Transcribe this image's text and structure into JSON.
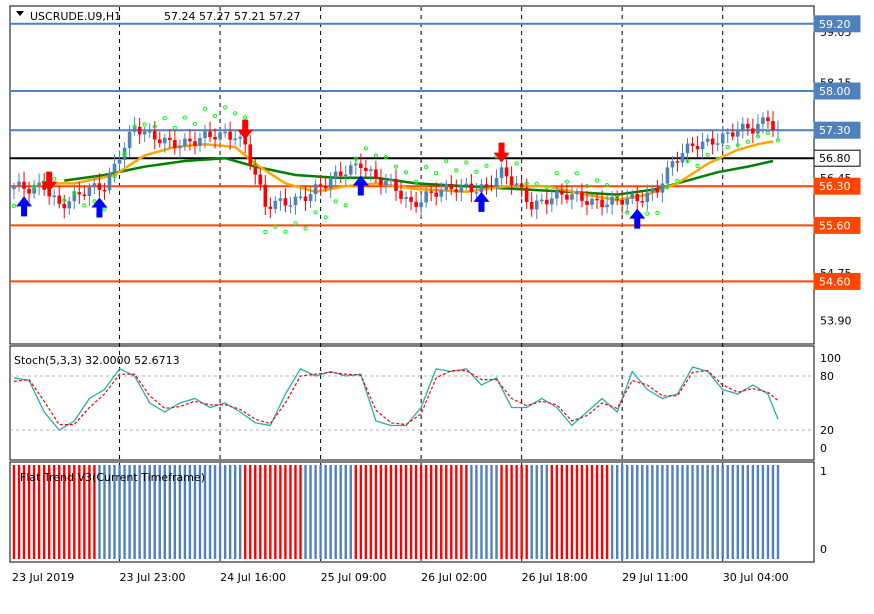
{
  "header": {
    "symbol": "USCRUDE.U9,H1",
    "ohlc": "57.24 57.27 57.21 57.27"
  },
  "colors": {
    "bull": "#4f81bd",
    "bear": "#ff0000",
    "resistance": "#4f81bd",
    "support": "#ff4500",
    "pivot": "#000000",
    "ma_fast": "#ffa500",
    "ma_slow": "#008000",
    "sar": "#00ff00",
    "stoch_main": "#20b2aa",
    "stoch_signal": "#ff0000",
    "arrow": "#0000ff"
  },
  "chart_data": [
    {
      "type": "candlestick",
      "panel": "price",
      "ylim": [
        53.5,
        59.5
      ],
      "price_axis_ticks": [
        "59.05",
        "58.15",
        "57.30",
        "56.45",
        "55.60",
        "54.75",
        "53.90"
      ],
      "tick_values": [
        59.05,
        58.15,
        57.3,
        56.45,
        55.6,
        54.75,
        53.9
      ],
      "levels": [
        {
          "label": "59.20",
          "value": 59.2,
          "kind": "resistance"
        },
        {
          "label": "58.00",
          "value": 58.0,
          "kind": "resistance"
        },
        {
          "label": "57.30",
          "value": 57.3,
          "kind": "resistance"
        },
        {
          "label": "56.80",
          "value": 56.8,
          "kind": "pivot"
        },
        {
          "label": "56.30",
          "value": 56.3,
          "kind": "support"
        },
        {
          "label": "55.60",
          "value": 55.6,
          "kind": "support"
        },
        {
          "label": "54.60",
          "value": 54.6,
          "kind": "support"
        }
      ],
      "close_path": [
        [
          0,
          56.3
        ],
        [
          3,
          56.2
        ],
        [
          6,
          56.3
        ],
        [
          9,
          56.0
        ],
        [
          12,
          56.1
        ],
        [
          15,
          56.2
        ],
        [
          18,
          56.3
        ],
        [
          21,
          56.9
        ],
        [
          24,
          57.35
        ],
        [
          27,
          57.15
        ],
        [
          31,
          57.1
        ],
        [
          36,
          57.1
        ],
        [
          41,
          57.2
        ],
        [
          44,
          57.25
        ],
        [
          46,
          57.05
        ],
        [
          48,
          56.5
        ],
        [
          50,
          55.9
        ],
        [
          53,
          56.0
        ],
        [
          58,
          56.15
        ],
        [
          62,
          56.3
        ],
        [
          66,
          56.6
        ],
        [
          69,
          56.75
        ],
        [
          72,
          56.4
        ],
        [
          75,
          56.3
        ],
        [
          79,
          56.0
        ],
        [
          82,
          56.15
        ],
        [
          86,
          56.2
        ],
        [
          90,
          56.3
        ],
        [
          94,
          56.3
        ],
        [
          97,
          56.5
        ],
        [
          100,
          56.3
        ],
        [
          103,
          56.0
        ],
        [
          107,
          56.1
        ],
        [
          112,
          56.1
        ],
        [
          116,
          56.05
        ],
        [
          120,
          56.0
        ],
        [
          124,
          56.05
        ],
        [
          128,
          56.3
        ],
        [
          131,
          56.7
        ],
        [
          135,
          57.0
        ],
        [
          139,
          57.15
        ],
        [
          143,
          57.25
        ],
        [
          147,
          57.3
        ],
        [
          150,
          57.55
        ],
        [
          152,
          57.3
        ]
      ],
      "ma_fast": [
        [
          6,
          56.35
        ],
        [
          12,
          56.35
        ],
        [
          20,
          56.5
        ],
        [
          26,
          56.85
        ],
        [
          32,
          57.0
        ],
        [
          38,
          57.05
        ],
        [
          44,
          57.0
        ],
        [
          48,
          56.7
        ],
        [
          54,
          56.35
        ],
        [
          60,
          56.2
        ],
        [
          66,
          56.3
        ],
        [
          72,
          56.35
        ],
        [
          80,
          56.25
        ],
        [
          90,
          56.2
        ],
        [
          98,
          56.3
        ],
        [
          106,
          56.3
        ],
        [
          114,
          56.15
        ],
        [
          120,
          56.05
        ],
        [
          126,
          56.15
        ],
        [
          132,
          56.35
        ],
        [
          138,
          56.7
        ],
        [
          144,
          56.95
        ],
        [
          148,
          57.05
        ],
        [
          151,
          57.1
        ]
      ],
      "ma_slow": [
        [
          10,
          56.4
        ],
        [
          18,
          56.5
        ],
        [
          26,
          56.65
        ],
        [
          34,
          56.75
        ],
        [
          42,
          56.8
        ],
        [
          48,
          56.65
        ],
        [
          56,
          56.5
        ],
        [
          64,
          56.45
        ],
        [
          72,
          56.45
        ],
        [
          80,
          56.35
        ],
        [
          90,
          56.3
        ],
        [
          100,
          56.25
        ],
        [
          110,
          56.2
        ],
        [
          120,
          56.15
        ],
        [
          128,
          56.25
        ],
        [
          134,
          56.4
        ],
        [
          140,
          56.55
        ],
        [
          146,
          56.65
        ],
        [
          151,
          56.75
        ]
      ],
      "arrows_up": [
        2,
        17,
        69,
        93,
        124
      ],
      "arrows_down": [
        7,
        46,
        97
      ]
    },
    {
      "type": "line",
      "panel": "stochastic",
      "title": "Stoch(5,3,3) 32.0000 52.6713",
      "ylim": [
        0,
        100
      ],
      "ticks": [
        "100",
        "80",
        "20",
        "0"
      ],
      "tick_values": [
        100,
        80,
        20,
        0
      ],
      "levels": [
        80,
        20
      ],
      "main": [
        [
          0,
          78
        ],
        [
          3,
          75
        ],
        [
          6,
          40
        ],
        [
          9,
          20
        ],
        [
          12,
          30
        ],
        [
          15,
          55
        ],
        [
          18,
          65
        ],
        [
          21,
          88
        ],
        [
          24,
          80
        ],
        [
          27,
          50
        ],
        [
          30,
          40
        ],
        [
          33,
          50
        ],
        [
          36,
          55
        ],
        [
          39,
          45
        ],
        [
          42,
          50
        ],
        [
          45,
          40
        ],
        [
          48,
          28
        ],
        [
          51,
          25
        ],
        [
          54,
          60
        ],
        [
          57,
          88
        ],
        [
          60,
          80
        ],
        [
          63,
          85
        ],
        [
          66,
          80
        ],
        [
          69,
          82
        ],
        [
          72,
          30
        ],
        [
          75,
          25
        ],
        [
          78,
          25
        ],
        [
          81,
          45
        ],
        [
          84,
          88
        ],
        [
          87,
          85
        ],
        [
          90,
          88
        ],
        [
          93,
          70
        ],
        [
          96,
          78
        ],
        [
          99,
          45
        ],
        [
          102,
          45
        ],
        [
          105,
          55
        ],
        [
          108,
          45
        ],
        [
          111,
          25
        ],
        [
          114,
          40
        ],
        [
          117,
          55
        ],
        [
          120,
          40
        ],
        [
          123,
          85
        ],
        [
          126,
          65
        ],
        [
          129,
          55
        ],
        [
          132,
          60
        ],
        [
          135,
          90
        ],
        [
          138,
          85
        ],
        [
          141,
          65
        ],
        [
          144,
          60
        ],
        [
          147,
          70
        ],
        [
          150,
          60
        ],
        [
          152,
          32
        ]
      ],
      "signal": [
        [
          0,
          74
        ],
        [
          3,
          76
        ],
        [
          6,
          52
        ],
        [
          9,
          26
        ],
        [
          12,
          26
        ],
        [
          15,
          45
        ],
        [
          18,
          60
        ],
        [
          21,
          82
        ],
        [
          24,
          82
        ],
        [
          27,
          58
        ],
        [
          30,
          44
        ],
        [
          33,
          46
        ],
        [
          36,
          52
        ],
        [
          39,
          48
        ],
        [
          42,
          48
        ],
        [
          45,
          43
        ],
        [
          48,
          32
        ],
        [
          51,
          27
        ],
        [
          54,
          50
        ],
        [
          57,
          80
        ],
        [
          60,
          82
        ],
        [
          63,
          84
        ],
        [
          66,
          82
        ],
        [
          69,
          81
        ],
        [
          72,
          42
        ],
        [
          75,
          28
        ],
        [
          78,
          26
        ],
        [
          81,
          38
        ],
        [
          84,
          78
        ],
        [
          87,
          86
        ],
        [
          90,
          86
        ],
        [
          93,
          76
        ],
        [
          96,
          76
        ],
        [
          99,
          55
        ],
        [
          102,
          47
        ],
        [
          105,
          52
        ],
        [
          108,
          48
        ],
        [
          111,
          30
        ],
        [
          114,
          36
        ],
        [
          117,
          50
        ],
        [
          120,
          44
        ],
        [
          123,
          75
        ],
        [
          126,
          70
        ],
        [
          129,
          58
        ],
        [
          132,
          58
        ],
        [
          135,
          84
        ],
        [
          138,
          86
        ],
        [
          141,
          70
        ],
        [
          144,
          62
        ],
        [
          147,
          66
        ],
        [
          150,
          62
        ],
        [
          152,
          52.6713
        ]
      ]
    },
    {
      "type": "bar",
      "panel": "trend",
      "title": "Flat Trend V3(Current Timeframe)",
      "ylim": [
        0,
        1
      ],
      "ticks": [
        "1",
        "0"
      ],
      "tick_values": [
        1,
        0
      ],
      "segments": [
        {
          "start": 0,
          "end": 16,
          "trend": "down"
        },
        {
          "start": 17,
          "end": 45,
          "trend": "up"
        },
        {
          "start": 46,
          "end": 57,
          "trend": "down"
        },
        {
          "start": 58,
          "end": 67,
          "trend": "up"
        },
        {
          "start": 68,
          "end": 90,
          "trend": "down"
        },
        {
          "start": 91,
          "end": 96,
          "trend": "up"
        },
        {
          "start": 97,
          "end": 102,
          "trend": "down"
        },
        {
          "start": 103,
          "end": 106,
          "trend": "up"
        },
        {
          "start": 107,
          "end": 118,
          "trend": "down"
        },
        {
          "start": 119,
          "end": 123,
          "trend": "up"
        },
        {
          "start": 124,
          "end": 152,
          "trend": "up"
        }
      ]
    }
  ],
  "time_axis": {
    "labels": [
      "23 Jul 2019",
      "23 Jul 23:00",
      "24 Jul 16:00",
      "25 Jul 09:00",
      "26 Jul 02:00",
      "26 Jul 18:00",
      "29 Jul 11:00",
      "30 Jul 04:00"
    ],
    "bar_index": [
      0,
      21,
      41,
      61,
      81,
      101,
      121,
      141
    ],
    "total_bars": 153
  }
}
